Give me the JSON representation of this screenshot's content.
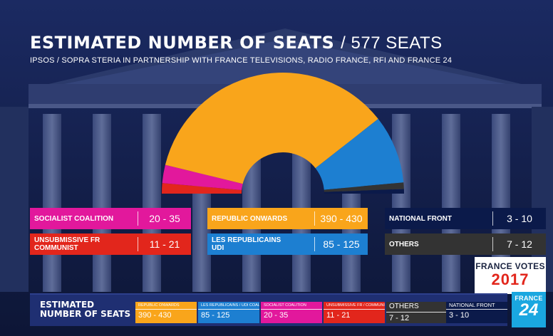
{
  "header": {
    "title_main": "ESTIMATED NUMBER OF SEATS",
    "title_suffix": "/ 577 SEATS",
    "subtitle": "IPSOS / SOPRA STERIA IN PARTNERSHIP WITH FRANCE TELEVISIONS, RADIO FRANCE, RFI AND FRANCE 24"
  },
  "chart_data": {
    "type": "pie",
    "variant": "hemicycle",
    "total": 577,
    "slices": [
      {
        "name": "UNSUBMISSIVE FR COMMUNIST",
        "value": 16,
        "color": "#e2261c"
      },
      {
        "name": "SOCIALIST COALITION",
        "value": 28,
        "color": "#e2189c"
      },
      {
        "name": "REPUBLIC ONWARDS",
        "value": 410,
        "color": "#f9a51b"
      },
      {
        "name": "LES REPUBLICAINS UDI",
        "value": 105,
        "color": "#1d7fd1"
      },
      {
        "name": "OTHERS",
        "value": 10,
        "color": "#333333"
      },
      {
        "name": "NATIONAL FRONT",
        "value": 7,
        "color": "#0b1a4a"
      }
    ]
  },
  "cards": [
    {
      "label": "SOCIALIST COALITION",
      "value": "20 - 35",
      "color": "#e2189c"
    },
    {
      "label": "UNSUBMISSIVE FR COMMUNIST",
      "value": "11 - 21",
      "color": "#e2261c"
    },
    {
      "label": "REPUBLIC ONWARDS",
      "value": "390 - 430",
      "color": "#f9a51b"
    },
    {
      "label": "LES REPUBLICAINS UDI",
      "value": "85 - 125",
      "color": "#1d7fd1"
    },
    {
      "label": "NATIONAL FRONT",
      "value": "3 - 10",
      "color": "#0b1a4a"
    },
    {
      "label": "OTHERS",
      "value": "7 - 12",
      "color": "#333333"
    }
  ],
  "logo": {
    "line1": "FRANCE VOTES",
    "line2": "2017"
  },
  "band": {
    "title": "ESTIMATED NUMBER OF SEATS",
    "items": [
      {
        "label": "REPUBLIC ONWARDS",
        "value": "390 - 430",
        "color": "#f9a51b"
      },
      {
        "label": "LES REPUBLICAINS / UDI COALITION",
        "value": "85 - 125",
        "color": "#1d7fd1"
      },
      {
        "label": "SOCIALIST COALITION",
        "value": "20 - 35",
        "color": "#e2189c"
      },
      {
        "label": "UNSUBMISSIVE FR / COMMUNIST",
        "value": "11 - 21",
        "color": "#e2261c"
      },
      {
        "label": "OTHERS",
        "value": "7 - 12",
        "color": "#333333"
      },
      {
        "label": "NATIONAL FRONT",
        "value": "3 - 10",
        "color": "#0b1a4a"
      }
    ]
  },
  "f24": {
    "line1": "FRANCE",
    "line2": "24"
  }
}
